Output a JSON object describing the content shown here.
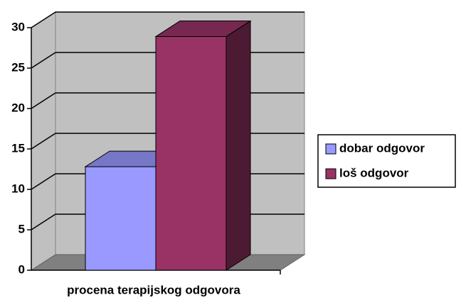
{
  "chart_data": {
    "type": "bar3d",
    "categories": [
      "procena terapijskog odgovora"
    ],
    "series": [
      {
        "name": "dobar odgovor",
        "color": "#9999ff",
        "values": [
          12.8
        ]
      },
      {
        "name": "loš odgovor",
        "color": "#993366",
        "values": [
          28.9
        ]
      }
    ],
    "ylim": [
      0,
      30
    ],
    "yticks": [
      0,
      5,
      10,
      15,
      20,
      25,
      30
    ],
    "grid": true,
    "legend": "right"
  }
}
